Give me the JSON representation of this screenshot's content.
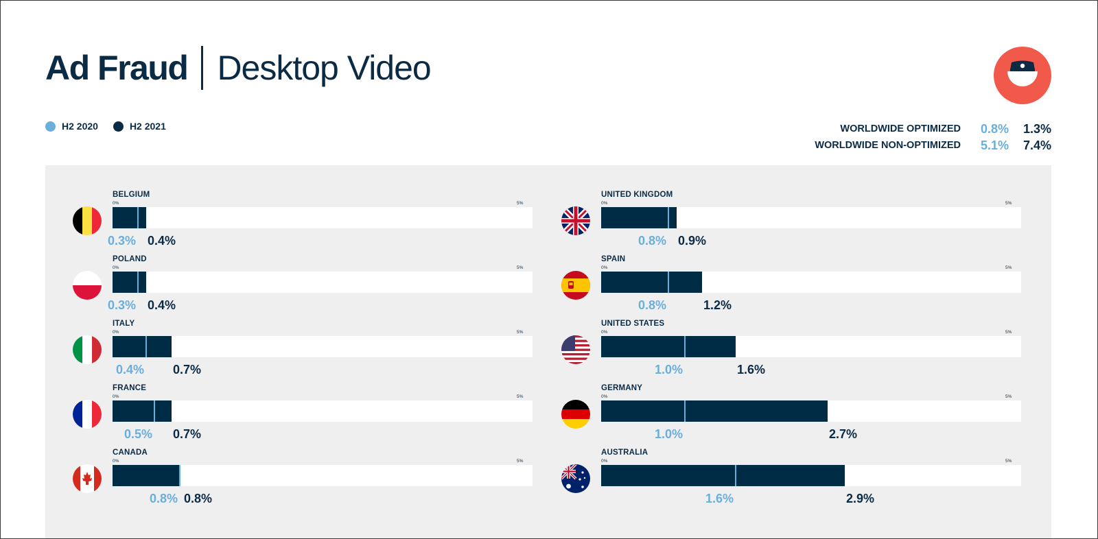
{
  "header": {
    "title_bold": "Ad Fraud",
    "title_light": "Desktop Video"
  },
  "legend": [
    {
      "label": "H2 2020",
      "color": "#6aaedc"
    },
    {
      "label": "H2 2021",
      "color": "#0b2a44"
    }
  ],
  "worldwide": [
    {
      "label": "WORLDWIDE OPTIMIZED",
      "h2_2020": "0.8%",
      "h2_2021": "1.3%"
    },
    {
      "label": "WORLDWIDE NON-OPTIMIZED",
      "h2_2020": "5.1%",
      "h2_2021": "7.4%"
    }
  ],
  "colors": {
    "accent": "#f15a4a",
    "h2_2020": "#6aaedc",
    "h2_2021": "#002b45",
    "panel": "#efefef"
  },
  "logo_icon": "masked-face-icon",
  "chart_data": {
    "type": "bar",
    "orientation": "horizontal",
    "xlim": [
      0,
      5
    ],
    "tick_min_label": "0%",
    "tick_max_label": "5%",
    "series": [
      {
        "name": "H2 2020"
      },
      {
        "name": "H2 2021"
      }
    ],
    "countries": [
      {
        "name": "BELGIUM",
        "flag": "belgium-flag-icon",
        "h2_2020": 0.3,
        "h2_2021": 0.4,
        "label_2020": "0.3%",
        "label_2021": "0.4%"
      },
      {
        "name": "POLAND",
        "flag": "poland-flag-icon",
        "h2_2020": 0.3,
        "h2_2021": 0.4,
        "label_2020": "0.3%",
        "label_2021": "0.4%"
      },
      {
        "name": "ITALY",
        "flag": "italy-flag-icon",
        "h2_2020": 0.4,
        "h2_2021": 0.7,
        "label_2020": "0.4%",
        "label_2021": "0.7%"
      },
      {
        "name": "FRANCE",
        "flag": "france-flag-icon",
        "h2_2020": 0.5,
        "h2_2021": 0.7,
        "label_2020": "0.5%",
        "label_2021": "0.7%"
      },
      {
        "name": "CANADA",
        "flag": "canada-flag-icon",
        "h2_2020": 0.8,
        "h2_2021": 0.8,
        "label_2020": "0.8%",
        "label_2021": "0.8%"
      },
      {
        "name": "UNITED KINGDOM",
        "flag": "uk-flag-icon",
        "h2_2020": 0.8,
        "h2_2021": 0.9,
        "label_2020": "0.8%",
        "label_2021": "0.9%"
      },
      {
        "name": "SPAIN",
        "flag": "spain-flag-icon",
        "h2_2020": 0.8,
        "h2_2021": 1.2,
        "label_2020": "0.8%",
        "label_2021": "1.2%"
      },
      {
        "name": "UNITED STATES",
        "flag": "usa-flag-icon",
        "h2_2020": 1.0,
        "h2_2021": 1.6,
        "label_2020": "1.0%",
        "label_2021": "1.6%"
      },
      {
        "name": "GERMANY",
        "flag": "germany-flag-icon",
        "h2_2020": 1.0,
        "h2_2021": 2.7,
        "label_2020": "1.0%",
        "label_2021": "2.7%"
      },
      {
        "name": "AUSTRALIA",
        "flag": "australia-flag-icon",
        "h2_2020": 1.6,
        "h2_2021": 2.9,
        "label_2020": "1.6%",
        "label_2021": "2.9%"
      }
    ]
  }
}
